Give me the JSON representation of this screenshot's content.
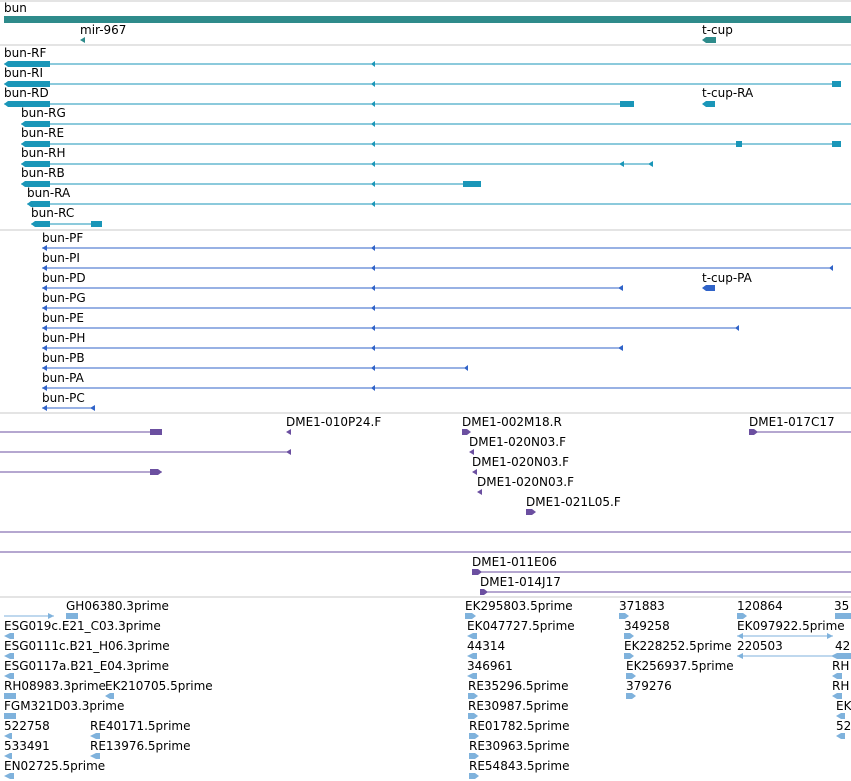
{
  "colors": {
    "gene": "#2e8b8b",
    "transcript": "#1a96b8",
    "protein": "#3063c8",
    "clone_purple": "#6b4fa0",
    "est": "#7fb2dc",
    "separator": "#c8c8c8"
  },
  "gene_track": {
    "labels": [
      "bun",
      "mir-967",
      "t-cup"
    ]
  },
  "transcript_track": {
    "labels": [
      "bun-RF",
      "bun-RI",
      "bun-RD",
      "t-cup-RA",
      "bun-RG",
      "bun-RE",
      "bun-RH",
      "bun-RB",
      "bun-RA",
      "bun-RC"
    ]
  },
  "protein_track": {
    "labels": [
      "bun-PF",
      "bun-PI",
      "bun-PD",
      "t-cup-PA",
      "bun-PG",
      "bun-PE",
      "bun-PH",
      "bun-PB",
      "bun-PA",
      "bun-PC"
    ]
  },
  "clone_track": {
    "labels": [
      "DME1-010P24.F",
      "DME1-002M18.R",
      "DME1-017C17",
      "DME1-020N03.F",
      "DME1-020N03.F",
      "DME1-020N03.F",
      "DME1-021L05.F"
    ]
  },
  "clone_track_2": {
    "labels": [
      "DME1-011E06",
      "DME1-014J17"
    ]
  },
  "est_track": {
    "labels": [
      "GH06380.3prime",
      "ESG019c.E21_C03.3prime",
      "ESG0111c.B21_H06.3prime",
      "ESG0117a.B21_E04.3prime",
      "RH08983.3prime",
      "EK210705.5prime",
      "FGM321D03.3prime",
      "522758",
      "RE40171.5prime",
      "533491",
      "RE13976.5prime",
      "EN02725.5prime",
      "EK295803.5prime",
      "EK047727.5prime",
      "44314",
      "346961",
      "RE35296.5prime",
      "RE30987.5prime",
      "RE01782.5prime",
      "RE30963.5prime",
      "RE54843.5prime",
      "371883",
      "349258",
      "EK228252.5prime",
      "EK256937.5prime",
      "379276",
      "120864",
      "EK097922.5prime",
      "220503",
      "35",
      "42",
      "RH",
      "RH",
      "EK",
      "52"
    ]
  }
}
